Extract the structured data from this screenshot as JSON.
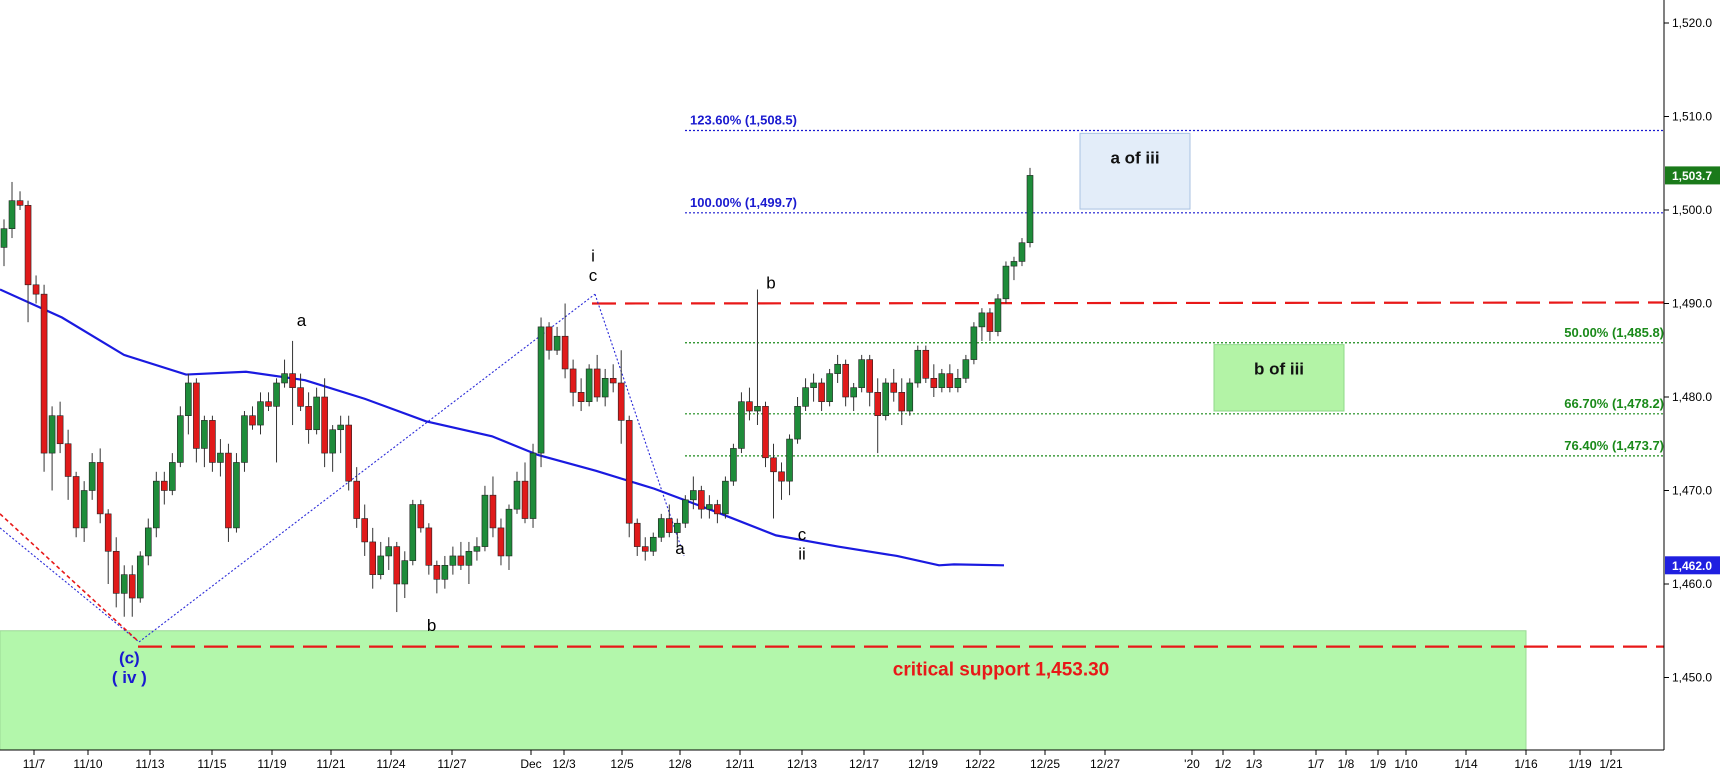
{
  "chart_data": {
    "type": "candlestick",
    "instrument_last_price": "1,503.7",
    "ylim": [
      1441,
      1520
    ],
    "y_ticks": [
      "1,450.0",
      "1,460.0",
      "1,470.0",
      "1,480.0",
      "1,490.0",
      "1,500.0",
      "1,510.0",
      "1,520.0"
    ],
    "x_tick_labels": [
      "11/7",
      "11/10",
      "11/13",
      "11/15",
      "11/19",
      "11/21",
      "11/24",
      "11/27",
      "Dec",
      "12/3",
      "12/5",
      "12/8",
      "12/11",
      "12/13",
      "12/17",
      "12/19",
      "12/22",
      "12/25",
      "12/27",
      "'20",
      "1/2",
      "1/3",
      "1/7",
      "1/8",
      "1/9",
      "1/10",
      "1/14",
      "1/16",
      "1/19",
      "1/21"
    ],
    "price_tags": [
      {
        "value": "1,503.7",
        "price": 1503.7,
        "bg": "#1a7a1a"
      },
      {
        "value": "1,462.0",
        "price": 1462.0,
        "bg": "#1f1fe0"
      }
    ],
    "moving_average": [
      [
        11.07,
        1491.5
      ],
      [
        11.1,
        1488.5
      ],
      [
        11.13,
        1484.5
      ],
      [
        11.15,
        1482.4
      ],
      [
        11.19,
        1482.7
      ],
      [
        11.21,
        1481.8
      ],
      [
        11.24,
        1479.8
      ],
      [
        11.27,
        1477.4
      ],
      [
        12.01,
        1475.8
      ],
      [
        12.03,
        1473.8
      ],
      [
        12.05,
        1472.1
      ],
      [
        12.08,
        1470.2
      ],
      [
        12.11,
        1467.8
      ],
      [
        12.13,
        1465.2
      ],
      [
        12.17,
        1464.0
      ],
      [
        12.19,
        1463.0
      ],
      [
        12.2,
        1462.0
      ],
      [
        12.22,
        1462.1
      ],
      [
        12.24,
        1462.0
      ]
    ],
    "fib_levels": [
      {
        "label": "123.60% (1,508.5)",
        "price": 1508.5,
        "color": "#1a1ad0"
      },
      {
        "label": "100.00% (1,499.7)",
        "price": 1499.7,
        "color": "#1a1ad0"
      },
      {
        "label": "50.00% (1,485.8)",
        "price": 1485.8,
        "color": "#1a8a1a"
      },
      {
        "label": "66.70% (1,478.2)",
        "price": 1478.2,
        "color": "#1a8a1a"
      },
      {
        "label": "76.40% (1,473.7)",
        "price": 1473.7,
        "color": "#1a8a1a"
      }
    ],
    "resistance_line": 1490.0,
    "critical_support": {
      "label": "critical support 1,453.30",
      "price": 1453.3
    },
    "support_zone": [
      1441,
      1455
    ],
    "boxes": [
      {
        "label": "a of iii",
        "price_top": 1508.2,
        "price_bottom": 1500.1,
        "color": "#e3edf9",
        "border": "#a8c2e2"
      },
      {
        "label": "b of iii",
        "price_top": 1485.6,
        "price_bottom": 1478.5,
        "color": "#b3f3a6",
        "border": "#8fd98a"
      }
    ],
    "wave_labels": [
      {
        "text": "a",
        "x": 11.2,
        "price": 1487.6,
        "color": "#000"
      },
      {
        "text": "i",
        "x": 12.04,
        "price": 1494.5,
        "color": "#000"
      },
      {
        "text": "c",
        "x": 12.04,
        "price": 1492.4,
        "color": "#000"
      },
      {
        "text": "b",
        "x": 12.12,
        "price": 1491.6,
        "color": "#000"
      },
      {
        "text": "b",
        "x": 11.26,
        "price": 1455.0,
        "color": "#000"
      },
      {
        "text": "a",
        "x": 12.08,
        "price": 1463.2,
        "color": "#000"
      },
      {
        "text": "c",
        "x": 12.13,
        "price": 1464.7,
        "color": "#000"
      },
      {
        "text": "ii",
        "x": 12.13,
        "price": 1462.6,
        "color": "#000"
      },
      {
        "text": "(c)",
        "x": 11.12,
        "price": 1451.5,
        "color": "#1a1ad0"
      },
      {
        "text": "( iv )",
        "x": 11.12,
        "price": 1449.4,
        "color": "#1a1ad0"
      }
    ],
    "candles": [
      [
        1496.0,
        1499.0,
        1494.0,
        1498.0
      ],
      [
        1498.0,
        1503.0,
        1497.0,
        1501.0
      ],
      [
        1501.0,
        1502.0,
        1500.0,
        1500.5
      ],
      [
        1500.5,
        1501.0,
        1488.0,
        1492.0
      ],
      [
        1492.0,
        1493.0,
        1490.0,
        1491.0
      ],
      [
        1491.0,
        1492.0,
        1472.0,
        1474.0
      ],
      [
        1474.0,
        1479.0,
        1470.0,
        1478.0
      ],
      [
        1478.0,
        1479.5,
        1474.0,
        1475.0
      ],
      [
        1475.0,
        1476.5,
        1469.0,
        1471.5
      ],
      [
        1471.5,
        1472.0,
        1465.0,
        1466.0
      ],
      [
        1466.0,
        1471.0,
        1464.5,
        1470.0
      ],
      [
        1470.0,
        1474.0,
        1469.0,
        1473.0
      ],
      [
        1473.0,
        1474.5,
        1466.5,
        1467.5
      ],
      [
        1467.5,
        1468.0,
        1460.0,
        1463.5
      ],
      [
        1463.5,
        1465.0,
        1457.5,
        1459.0
      ],
      [
        1459.0,
        1462.0,
        1456.5,
        1461.0
      ],
      [
        1461.0,
        1462.0,
        1456.5,
        1458.5
      ],
      [
        1458.5,
        1463.5,
        1458.0,
        1463.0
      ],
      [
        1463.0,
        1467.0,
        1462.0,
        1466.0
      ],
      [
        1466.0,
        1472.0,
        1465.0,
        1471.0
      ],
      [
        1471.0,
        1472.0,
        1468.5,
        1470.0
      ],
      [
        1470.0,
        1474.0,
        1469.5,
        1473.0
      ],
      [
        1473.0,
        1479.0,
        1472.5,
        1478.0
      ],
      [
        1478.0,
        1482.5,
        1476.0,
        1481.5
      ],
      [
        1481.5,
        1482.0,
        1473.0,
        1474.5
      ],
      [
        1474.5,
        1478.0,
        1472.5,
        1477.5
      ],
      [
        1477.5,
        1478.0,
        1472.0,
        1473.0
      ],
      [
        1473.0,
        1475.5,
        1471.5,
        1474.0
      ],
      [
        1474.0,
        1475.0,
        1464.5,
        1466.0
      ],
      [
        1466.0,
        1474.0,
        1465.5,
        1473.0
      ],
      [
        1473.0,
        1478.5,
        1472.0,
        1478.0
      ],
      [
        1478.0,
        1479.0,
        1476.5,
        1477.0
      ],
      [
        1477.0,
        1480.5,
        1476.0,
        1479.5
      ],
      [
        1479.5,
        1480.5,
        1478.5,
        1479.0
      ],
      [
        1479.0,
        1482.0,
        1473.0,
        1481.5
      ],
      [
        1481.5,
        1484.0,
        1481.0,
        1482.5
      ],
      [
        1482.5,
        1486.0,
        1477.0,
        1481.0
      ],
      [
        1481.0,
        1482.5,
        1478.5,
        1479.0
      ],
      [
        1479.0,
        1480.5,
        1475.0,
        1476.5
      ],
      [
        1476.5,
        1481.0,
        1476.0,
        1480.0
      ],
      [
        1480.0,
        1482.0,
        1472.5,
        1474.0
      ],
      [
        1474.0,
        1477.0,
        1472.0,
        1476.5
      ],
      [
        1476.5,
        1478.0,
        1474.0,
        1477.0
      ],
      [
        1477.0,
        1478.0,
        1470.0,
        1471.0
      ],
      [
        1471.0,
        1472.5,
        1466.0,
        1467.0
      ],
      [
        1467.0,
        1468.5,
        1463.0,
        1464.5
      ],
      [
        1464.5,
        1466.0,
        1459.5,
        1461.0
      ],
      [
        1461.0,
        1464.5,
        1460.5,
        1463.0
      ],
      [
        1463.0,
        1465.0,
        1461.5,
        1464.0
      ],
      [
        1464.0,
        1464.5,
        1457.0,
        1460.0
      ],
      [
        1460.0,
        1463.5,
        1458.5,
        1462.5
      ],
      [
        1462.5,
        1469.0,
        1462.0,
        1468.5
      ],
      [
        1468.5,
        1469.0,
        1465.5,
        1466.0
      ],
      [
        1466.0,
        1466.5,
        1461.0,
        1462.0
      ],
      [
        1462.0,
        1462.5,
        1459.0,
        1460.5
      ],
      [
        1460.5,
        1463.0,
        1459.5,
        1462.0
      ],
      [
        1462.0,
        1464.0,
        1461.0,
        1463.0
      ],
      [
        1463.0,
        1464.5,
        1461.5,
        1462.0
      ],
      [
        1462.0,
        1464.5,
        1460.0,
        1463.5
      ],
      [
        1463.5,
        1465.0,
        1462.5,
        1464.0
      ],
      [
        1464.0,
        1470.5,
        1463.5,
        1469.5
      ],
      [
        1469.5,
        1471.5,
        1465.0,
        1466.0
      ],
      [
        1466.0,
        1467.0,
        1462.0,
        1463.0
      ],
      [
        1463.0,
        1468.5,
        1461.5,
        1468.0
      ],
      [
        1468.0,
        1472.0,
        1467.5,
        1471.0
      ],
      [
        1471.0,
        1473.0,
        1466.5,
        1467.0
      ],
      [
        1467.0,
        1475.0,
        1466.0,
        1474.0
      ],
      [
        1474.0,
        1488.5,
        1472.5,
        1487.5
      ],
      [
        1487.5,
        1488.0,
        1484.0,
        1485.0
      ],
      [
        1485.0,
        1487.5,
        1484.5,
        1486.5
      ],
      [
        1486.5,
        1490.0,
        1482.0,
        1483.0
      ],
      [
        1483.0,
        1484.0,
        1479.0,
        1480.5
      ],
      [
        1480.5,
        1482.0,
        1478.5,
        1479.5
      ],
      [
        1479.5,
        1483.5,
        1479.0,
        1483.0
      ],
      [
        1483.0,
        1484.5,
        1479.5,
        1480.0
      ],
      [
        1480.0,
        1483.0,
        1479.0,
        1482.0
      ],
      [
        1482.0,
        1483.5,
        1480.5,
        1481.5
      ],
      [
        1481.5,
        1485.0,
        1475.0,
        1477.5
      ],
      [
        1477.5,
        1478.0,
        1465.0,
        1466.5
      ],
      [
        1466.5,
        1467.0,
        1463.0,
        1464.0
      ],
      [
        1464.0,
        1465.0,
        1462.5,
        1463.5
      ],
      [
        1463.5,
        1465.5,
        1463.0,
        1465.0
      ],
      [
        1465.0,
        1467.5,
        1464.5,
        1467.0
      ],
      [
        1467.0,
        1468.5,
        1465.0,
        1465.5
      ],
      [
        1465.5,
        1467.0,
        1464.0,
        1466.5
      ],
      [
        1466.5,
        1469.5,
        1466.0,
        1469.0
      ],
      [
        1469.0,
        1471.5,
        1468.0,
        1470.0
      ],
      [
        1470.0,
        1470.5,
        1467.0,
        1468.0
      ],
      [
        1468.0,
        1469.5,
        1467.0,
        1468.5
      ],
      [
        1468.5,
        1469.0,
        1466.5,
        1467.5
      ],
      [
        1467.5,
        1471.5,
        1467.0,
        1471.0
      ],
      [
        1471.0,
        1475.0,
        1470.5,
        1474.5
      ],
      [
        1474.5,
        1480.5,
        1474.0,
        1479.5
      ],
      [
        1479.5,
        1481.0,
        1477.5,
        1478.5
      ],
      [
        1478.5,
        1491.5,
        1477.0,
        1479.0
      ],
      [
        1479.0,
        1479.5,
        1472.5,
        1473.5
      ],
      [
        1473.5,
        1475.0,
        1467.0,
        1472.0
      ],
      [
        1472.0,
        1473.0,
        1469.0,
        1471.0
      ],
      [
        1471.0,
        1476.0,
        1469.5,
        1475.5
      ],
      [
        1475.5,
        1480.0,
        1475.0,
        1479.0
      ],
      [
        1479.0,
        1482.0,
        1478.5,
        1481.0
      ],
      [
        1481.0,
        1482.5,
        1479.5,
        1481.5
      ],
      [
        1481.5,
        1482.0,
        1478.5,
        1479.5
      ],
      [
        1479.5,
        1483.0,
        1479.0,
        1482.5
      ],
      [
        1482.5,
        1484.5,
        1481.5,
        1483.5
      ],
      [
        1483.5,
        1484.0,
        1479.0,
        1480.0
      ],
      [
        1480.0,
        1481.5,
        1478.5,
        1481.0
      ],
      [
        1481.0,
        1484.5,
        1480.5,
        1484.0
      ],
      [
        1484.0,
        1484.5,
        1479.0,
        1480.5
      ],
      [
        1480.5,
        1482.0,
        1474.0,
        1478.0
      ],
      [
        1478.0,
        1482.0,
        1477.5,
        1481.5
      ],
      [
        1481.5,
        1483.0,
        1479.5,
        1480.5
      ],
      [
        1480.5,
        1482.0,
        1477.0,
        1478.5
      ],
      [
        1478.5,
        1482.0,
        1478.0,
        1481.5
      ],
      [
        1481.5,
        1485.5,
        1481.0,
        1485.0
      ],
      [
        1485.0,
        1485.5,
        1481.5,
        1482.0
      ],
      [
        1482.0,
        1483.5,
        1480.0,
        1481.0
      ],
      [
        1481.0,
        1483.0,
        1480.5,
        1482.5
      ],
      [
        1482.5,
        1483.5,
        1480.5,
        1481.0
      ],
      [
        1481.0,
        1483.0,
        1480.5,
        1482.0
      ],
      [
        1482.0,
        1484.5,
        1481.5,
        1484.0
      ],
      [
        1484.0,
        1488.0,
        1483.5,
        1487.5
      ],
      [
        1487.5,
        1489.5,
        1486.0,
        1489.0
      ],
      [
        1489.0,
        1489.5,
        1486.0,
        1487.0
      ],
      [
        1487.0,
        1491.0,
        1486.5,
        1490.5
      ],
      [
        1490.5,
        1494.5,
        1490.0,
        1494.0
      ],
      [
        1494.0,
        1495.0,
        1492.5,
        1494.5
      ],
      [
        1494.5,
        1497.0,
        1494.0,
        1496.5
      ],
      [
        1496.5,
        1504.5,
        1496.0,
        1503.7
      ]
    ]
  }
}
